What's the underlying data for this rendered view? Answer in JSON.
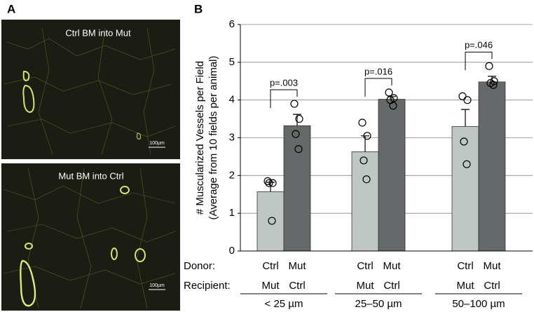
{
  "panel_a": {
    "label": "A",
    "images": [
      {
        "caption": "Ctrl BM into Mut",
        "scale_bar": "100µm"
      },
      {
        "caption": "Mut BM into Ctrl",
        "scale_bar": "100µm"
      }
    ]
  },
  "chart_data": {
    "type": "bar",
    "panel_label": "B",
    "y_label": [
      "# Muscularized Vessels per Field",
      "(Average from 10 fields per animal)"
    ],
    "row_labels": [
      "Donor:",
      "Recipient:"
    ],
    "categories": [
      "< 25 µm",
      "25–50 µm",
      "50–100 µm"
    ],
    "series": [
      {
        "donor": "Ctrl",
        "recipient": "Mut",
        "color": "#bec7c3",
        "values": [
          1.57,
          2.63,
          3.3
        ],
        "errors": [
          0.25,
          0.42,
          0.45
        ],
        "points": [
          [
            1.85,
            1.8,
            1.8,
            0.8
          ],
          [
            3.4,
            3.05,
            2.4,
            1.9
          ],
          [
            4.1,
            4.0,
            2.9,
            2.3
          ]
        ]
      },
      {
        "donor": "Mut",
        "recipient": "Ctrl",
        "color": "#66696a",
        "values": [
          3.32,
          4.02,
          4.48
        ],
        "errors": [
          0.3,
          0.07,
          0.15
        ],
        "points": [
          [
            3.9,
            3.5,
            3.1,
            2.7
          ],
          [
            4.2,
            4.05,
            4.0,
            3.85
          ],
          [
            4.9,
            4.5,
            4.45,
            4.4
          ]
        ]
      }
    ],
    "annotations": [
      "p=.003",
      "p=.016",
      "p=.046"
    ],
    "ylim": [
      0,
      6
    ],
    "yticks": [
      0,
      1,
      2,
      3,
      4,
      5,
      6
    ],
    "grid": true
  }
}
